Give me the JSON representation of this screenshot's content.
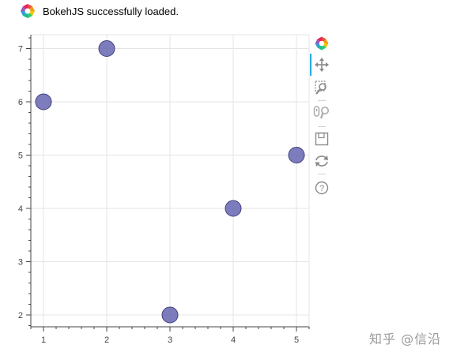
{
  "banner": {
    "message": "BokehJS successfully loaded."
  },
  "toolbar": {
    "tools": [
      {
        "name": "pan",
        "icon": "pan-icon",
        "active": true
      },
      {
        "name": "box_zoom",
        "icon": "box-zoom-icon",
        "active": false
      },
      {
        "name": "wheel_zoom",
        "icon": "wheel-zoom-icon",
        "active": false
      },
      {
        "name": "save",
        "icon": "save-icon",
        "active": false
      },
      {
        "name": "reset",
        "icon": "reset-icon",
        "active": false
      },
      {
        "name": "help",
        "icon": "help-icon",
        "active": false
      }
    ]
  },
  "watermark": {
    "text": "知乎 @信沿"
  },
  "colors": {
    "marker_fill": "#6666b3",
    "marker_line": "#404080",
    "grid": "#e5e5e5",
    "axis": "#444444",
    "active_tool": "#26aae1"
  },
  "chart_data": {
    "type": "scatter",
    "x": [
      1,
      2,
      3,
      4,
      5
    ],
    "y": [
      6,
      7,
      2,
      4,
      5
    ],
    "xlim": [
      0.8,
      5.2
    ],
    "ylim": [
      1.8,
      7.2
    ],
    "xticks": [
      1,
      2,
      3,
      4,
      5
    ],
    "yticks": [
      2,
      3,
      4,
      5,
      6,
      7
    ],
    "grid": true,
    "marker": "circle"
  }
}
